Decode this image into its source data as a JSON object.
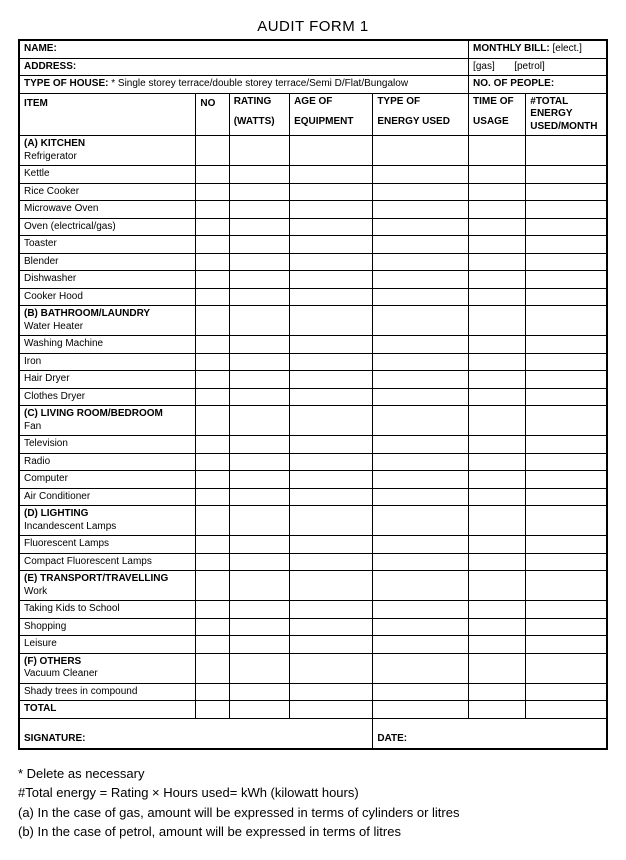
{
  "title": "AUDIT FORM 1",
  "header": {
    "name_label": "NAME:",
    "address_label": "ADDRESS:",
    "type_house_label": "TYPE OF HOUSE:",
    "type_house_options": " * Single storey terrace/double storey terrace/Semi D/Flat/Bungalow",
    "monthly_bill_label": "MONTHLY BILL:",
    "monthly_bill_elect": "[elect.]",
    "monthly_bill_gas": "[gas]",
    "monthly_bill_petrol": "[petrol]",
    "no_people_label": "NO. OF PEOPLE:"
  },
  "columns": {
    "item": "ITEM",
    "no": "NO",
    "rating_top": "RATING",
    "rating_bottom": "(WATTS)",
    "age_top": "AGE OF",
    "age_bottom": "EQUIPMENT",
    "type_top": "TYPE OF",
    "type_bottom": "ENERGY USED",
    "time_top": "TIME OF",
    "time_bottom": "USAGE",
    "total_top": "#TOTAL ENERGY USED/MONTH"
  },
  "sections": [
    {
      "head": "(A) KITCHEN",
      "first": "Refrigerator",
      "rows": [
        "Kettle",
        "Rice Cooker",
        "Microwave Oven",
        "Oven (electrical/gas)",
        "Toaster",
        "Blender",
        "Dishwasher",
        "Cooker Hood"
      ]
    },
    {
      "head": "(B) BATHROOM/LAUNDRY",
      "first": "Water Heater",
      "rows": [
        "Washing Machine",
        "Iron",
        "Hair Dryer",
        "Clothes Dryer"
      ]
    },
    {
      "head": "(C) LIVING ROOM/BEDROOM",
      "first": "Fan",
      "rows": [
        "Television",
        "Radio",
        "Computer",
        "Air Conditioner"
      ]
    },
    {
      "head": "(D) LIGHTING",
      "first": "Incandescent Lamps",
      "rows": [
        "Fluorescent Lamps",
        "Compact Fluorescent Lamps"
      ]
    },
    {
      "head": "(E) TRANSPORT/TRAVELLING",
      "first": "Work",
      "rows": [
        "Taking Kids to School",
        "Shopping",
        "Leisure"
      ]
    },
    {
      "head": "(F) OTHERS",
      "first": "Vacuum Cleaner",
      "rows": [
        " Shady trees in compound"
      ]
    }
  ],
  "total_label": "TOTAL",
  "signature_label": "SIGNATURE:",
  "date_label": "DATE:",
  "notes": {
    "n1": "* Delete as necessary",
    "n2": "#Total energy = Rating × Hours used= kWh (kilowatt hours)",
    "n3": "(a) In the case of gas, amount will be expressed in terms of cylinders or litres",
    "n4": "(b) In the case of petrol, amount will be expressed in terms of litres"
  }
}
